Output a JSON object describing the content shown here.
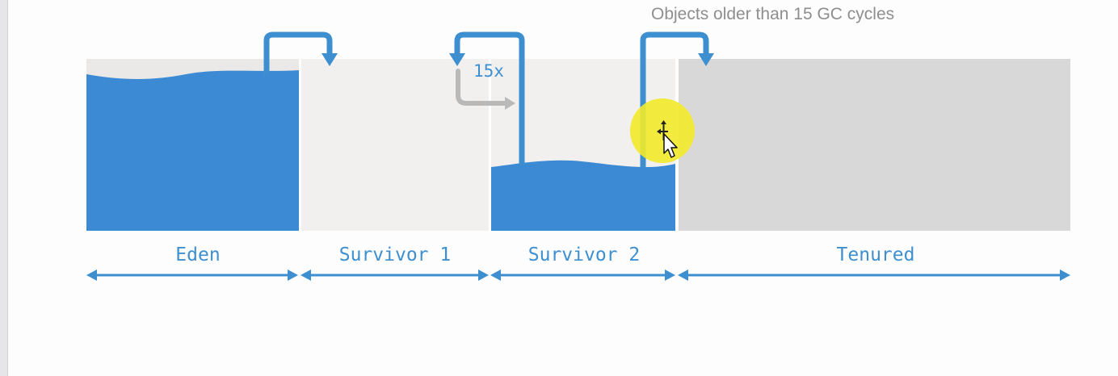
{
  "diagram": {
    "annotation": "Objects older than 15 GC cycles",
    "cycle_label": "15x",
    "regions": [
      {
        "key": "eden",
        "label": "Eden",
        "fill_level": 0.93
      },
      {
        "key": "survivor1",
        "label": "Survivor 1",
        "fill_level": 0.0
      },
      {
        "key": "survivor2",
        "label": "Survivor 2",
        "fill_level": 0.39
      },
      {
        "key": "tenured",
        "label": "Tenured",
        "fill_level": 0.0
      }
    ],
    "colors": {
      "fill": "#3d8ad4",
      "empty_region": "#f1f0ee",
      "tenured_region": "#d9d8d8",
      "arrow": "#3d8fcf",
      "gray_arrow": "#b9b9b9",
      "highlight": "#f2ea2a"
    },
    "cursor_icon": "move-cursor-icon"
  }
}
